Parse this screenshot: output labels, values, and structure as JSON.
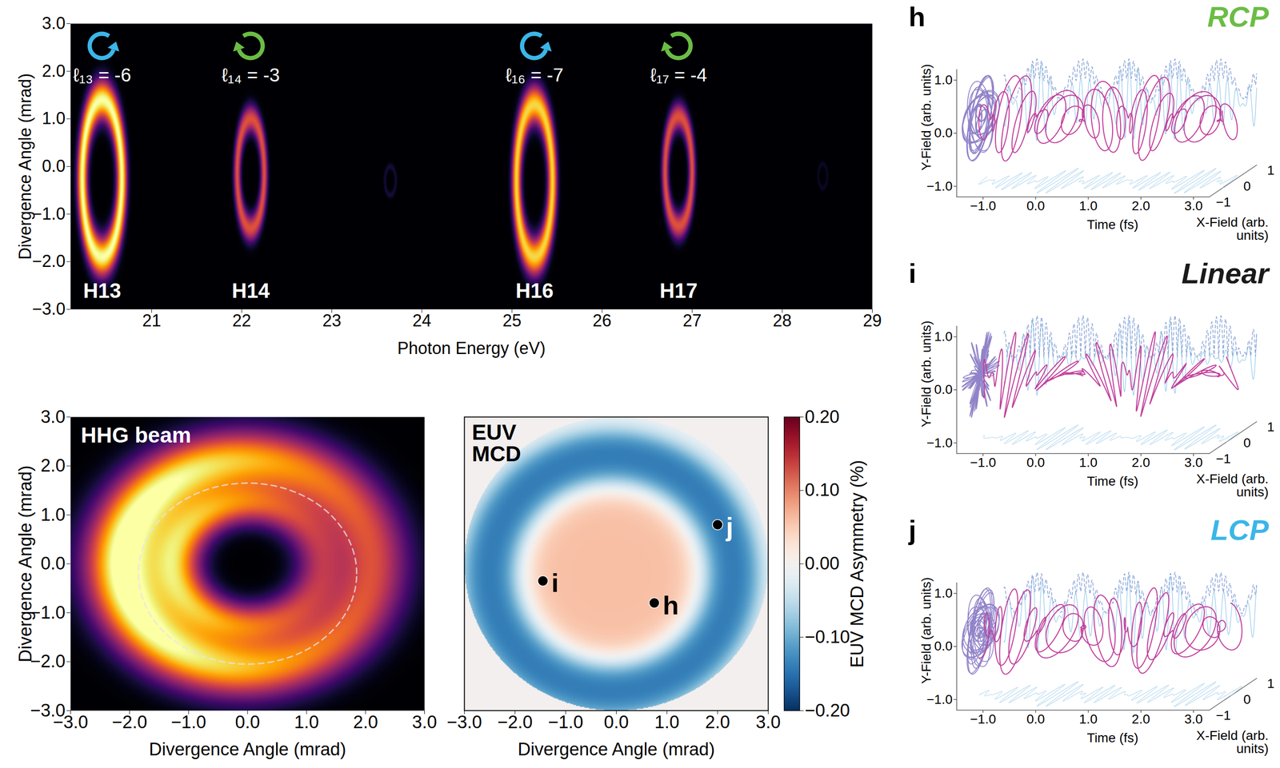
{
  "chart_data": [
    {
      "type": "spectrum_image",
      "x_label": "Photon Energy (eV)",
      "y_label": "Divergence Angle (mrad)",
      "xlim": [
        20.1,
        29
      ],
      "xticks": [
        21,
        22,
        23,
        24,
        25,
        26,
        27,
        28,
        29
      ],
      "ylim": [
        -3,
        3
      ],
      "yticks": [
        -3,
        -2,
        -1,
        0,
        1,
        2,
        3
      ],
      "harmonics": [
        {
          "label": "H13",
          "oam_label": "ℓ₁₃ = -6",
          "helicity": "LCP",
          "color": "#3bb6e8",
          "energy": 20.45,
          "center": -0.25,
          "radius": 1.65,
          "halfwidth": 0.22,
          "intensity": 1.0
        },
        {
          "label": "H14",
          "oam_label": "ℓ₁₄ = -3",
          "helicity": "RCP",
          "color": "#6bbd45",
          "energy": 22.1,
          "center": -0.15,
          "radius": 1.15,
          "halfwidth": 0.15,
          "intensity": 0.6
        },
        {
          "label": null,
          "oam_label": null,
          "helicity": null,
          "color": null,
          "energy": 23.65,
          "center": -0.3,
          "radius": 0.3,
          "halfwidth": 0.06,
          "intensity": 0.1
        },
        {
          "label": "H16",
          "oam_label": "ℓ₁₆ = -7",
          "helicity": "LCP",
          "color": "#3bb6e8",
          "energy": 25.25,
          "center": -0.3,
          "radius": 1.6,
          "halfwidth": 0.2,
          "intensity": 0.9
        },
        {
          "label": "H17",
          "oam_label": "ℓ₁₇ = -4",
          "helicity": "RCP",
          "color": "#6bbd45",
          "energy": 26.85,
          "center": -0.1,
          "radius": 1.15,
          "halfwidth": 0.15,
          "intensity": 0.6
        },
        {
          "label": null,
          "oam_label": null,
          "helicity": null,
          "color": null,
          "energy": 28.45,
          "center": -0.2,
          "radius": 0.25,
          "halfwidth": 0.05,
          "intensity": 0.07
        }
      ]
    },
    {
      "type": "beam_image",
      "title": "HHG beam",
      "x_label": "Divergence Angle (mrad)",
      "y_label": "Divergence Angle (mrad)",
      "xlim": [
        -3,
        3
      ],
      "xticks": [
        -3,
        -2,
        -1,
        0,
        1,
        2,
        3
      ],
      "ylim": [
        -3,
        3
      ],
      "yticks": [
        -3,
        -2,
        -1,
        0,
        1,
        2,
        3
      ],
      "center": [
        0,
        0
      ],
      "rings": [
        {
          "radius": 1.2,
          "width": 0.3,
          "intensity": 0.6
        },
        {
          "radius": 2.1,
          "width": 0.45,
          "intensity": 0.85
        }
      ],
      "bright_angle_deg": 180,
      "asymmetry": 0.3,
      "circle": {
        "center": [
          0,
          -0.2
        ],
        "radius": 1.85
      }
    },
    {
      "type": "mcd_map",
      "title": "EUV MCD",
      "tick_labels": "x",
      "x_label": "Divergence Angle (mrad)",
      "xlim": [
        -3,
        3
      ],
      "xticks": [
        -3,
        -2,
        -1,
        0,
        1,
        2,
        3
      ],
      "ylim": [
        -3,
        3
      ],
      "center": [
        -0.1,
        -0.2
      ],
      "aperture_radius": 3,
      "inner": {
        "value": 0.06,
        "radius": 1.65
      },
      "outer": {
        "value": -0.15,
        "inner_radius": 1.9,
        "outer_radius": 2.9
      },
      "colorbar": {
        "label": "EUV MCD Asymmetry (%)",
        "lim": [
          -0.2,
          0.2
        ],
        "ticks": [
          -0.2,
          -0.1,
          0,
          0.1,
          0.2
        ]
      },
      "points": [
        {
          "label": "i",
          "x": -1.45,
          "y": -0.35,
          "label_color": "#000000"
        },
        {
          "label": "h",
          "x": 0.75,
          "y": -0.8,
          "label_color": "#000000"
        },
        {
          "label": "j",
          "x": 2.0,
          "y": 0.8,
          "label_color": "#ffffff"
        }
      ]
    },
    {
      "type": "field_3d",
      "panel": "h",
      "title": "RCP",
      "title_color": "#6bbd45",
      "x_label": "Time (fs)",
      "y_label": "Y-Field (arb. units)",
      "z_label": "X-Field (arb. units)",
      "xlim": [
        -1.5,
        3.3
      ],
      "xticks": [
        -1,
        0,
        1,
        2,
        3
      ],
      "ylim": [
        -1.2,
        1.2
      ],
      "yticks": [
        -1,
        0,
        1
      ],
      "zlim": [
        -1,
        1
      ],
      "zticks": [
        -1,
        0,
        1
      ],
      "field_amplitudes": {
        "H13": 0.08,
        "H14": 0.32,
        "H16": 0.1,
        "H17": 0.3
      }
    },
    {
      "type": "field_3d",
      "panel": "i",
      "title": "Linear",
      "title_color": "#1a1a1a",
      "x_label": "Time (fs)",
      "y_label": "Y-Field (arb. units)",
      "z_label": "X-Field (arb. units)",
      "xlim": [
        -1.5,
        3.3
      ],
      "xticks": [
        -1,
        0,
        1,
        2,
        3
      ],
      "ylim": [
        -1.2,
        1.2
      ],
      "yticks": [
        -1,
        0,
        1
      ],
      "zlim": [
        -1,
        1
      ],
      "zticks": [
        -1,
        0,
        1
      ],
      "field_amplitudes": {
        "H13": 0.2,
        "H14": 0.2,
        "H16": 0.2,
        "H17": 0.2
      }
    },
    {
      "type": "field_3d",
      "panel": "j",
      "title": "LCP",
      "title_color": "#3bb6e8",
      "x_label": "Time (fs)",
      "y_label": "Y-Field (arb. units)",
      "z_label": "X-Field (arb. units)",
      "xlim": [
        -1.5,
        3.3
      ],
      "xticks": [
        -1,
        0,
        1,
        2,
        3
      ],
      "ylim": [
        -1.2,
        1.2
      ],
      "yticks": [
        -1,
        0,
        1
      ],
      "zlim": [
        -1,
        1
      ],
      "zticks": [
        -1,
        0,
        1
      ],
      "field_amplitudes": {
        "H13": 0.32,
        "H14": 0.08,
        "H16": 0.3,
        "H17": 0.1
      }
    }
  ]
}
